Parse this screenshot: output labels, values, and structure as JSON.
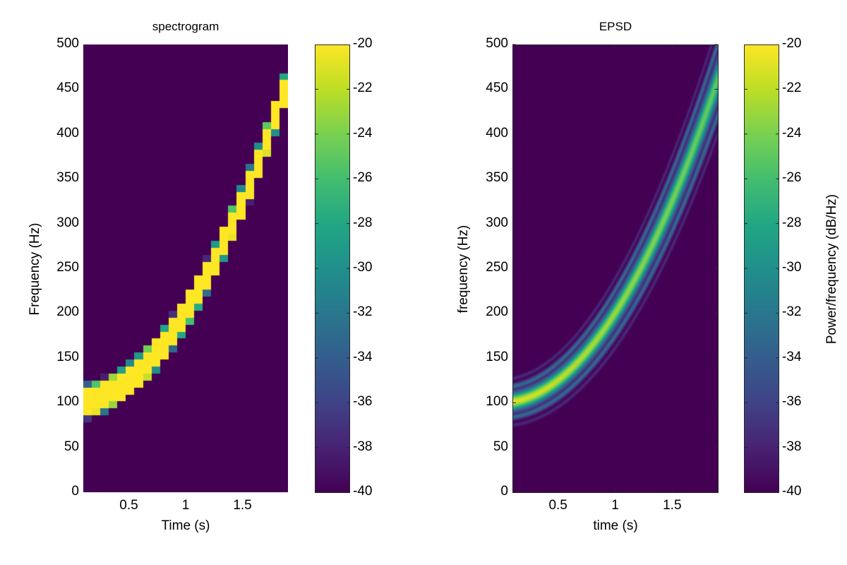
{
  "chart_data": [
    {
      "type": "heatmap",
      "title": "spectrogram",
      "xlabel": "Time (s)",
      "ylabel": "Frequency (Hz)",
      "xlim": [
        0.1,
        1.9
      ],
      "ylim": [
        0,
        500
      ],
      "xticks": [
        0.5,
        1,
        1.5
      ],
      "xtick_labels": [
        "0.5",
        "1",
        "1.5"
      ],
      "yticks": [
        0,
        50,
        100,
        150,
        200,
        250,
        300,
        350,
        400,
        450,
        500
      ],
      "ytick_labels": [
        "0",
        "50",
        "100",
        "150",
        "200",
        "250",
        "300",
        "350",
        "400",
        "450",
        "500"
      ],
      "signal": {
        "description": "quadratic chirp",
        "f0_hz": 100,
        "f_at_1s_hz": 200,
        "formula": "f(t) = 100 + 100 t^2"
      },
      "ridge_samples": {
        "t": [
          0.1,
          0.5,
          1.0,
          1.5,
          1.9
        ],
        "f": [
          101,
          125,
          200,
          325,
          461
        ]
      },
      "time_bin_s": 0.075,
      "freq_bin_hz": 7.8,
      "band_halfwidth_hz": 14,
      "peak_db": -20,
      "floor_db": -40,
      "colorbar": {
        "label": "",
        "clim": [
          -40,
          -20
        ],
        "ticks": [
          -20,
          -22,
          -24,
          -26,
          -28,
          -30,
          -32,
          -34,
          -36,
          -38,
          -40
        ],
        "tick_labels": [
          "-20",
          "-22",
          "-24",
          "-26",
          "-28",
          "-30",
          "-32",
          "-34",
          "-36",
          "-38",
          "-40"
        ]
      },
      "colormap": "viridis"
    },
    {
      "type": "heatmap",
      "title": "EPSD",
      "xlabel": "time (s)",
      "ylabel": "frequency (Hz)",
      "xlim": [
        0.1,
        1.9
      ],
      "ylim": [
        0,
        500
      ],
      "xticks": [
        0.5,
        1,
        1.5
      ],
      "xtick_labels": [
        "0.5",
        "1",
        "1.5"
      ],
      "yticks": [
        0,
        50,
        100,
        150,
        200,
        250,
        300,
        350,
        400,
        450,
        500
      ],
      "ytick_labels": [
        "0",
        "50",
        "100",
        "150",
        "200",
        "250",
        "300",
        "350",
        "400",
        "450",
        "500"
      ],
      "signal": {
        "description": "quadratic chirp",
        "f0_hz": 100,
        "f_at_1s_hz": 200,
        "formula": "f(t) = 100 + 100 t^2"
      },
      "ridge_samples": {
        "t": [
          0.1,
          0.5,
          1.0,
          1.5,
          1.9
        ],
        "f": [
          101,
          125,
          200,
          325,
          461
        ]
      },
      "peak_db_start": -21,
      "peak_db_end": -25,
      "floor_db": -40,
      "colorbar": {
        "label": "Power/frequency (dB/Hz)",
        "clim": [
          -40,
          -20
        ],
        "ticks": [
          -20,
          -22,
          -24,
          -26,
          -28,
          -30,
          -32,
          -34,
          -36,
          -38,
          -40
        ],
        "tick_labels": [
          "-20",
          "-22",
          "-24",
          "-26",
          "-28",
          "-30",
          "-32",
          "-34",
          "-36",
          "-38",
          "-40"
        ]
      },
      "colormap": "viridis"
    }
  ]
}
